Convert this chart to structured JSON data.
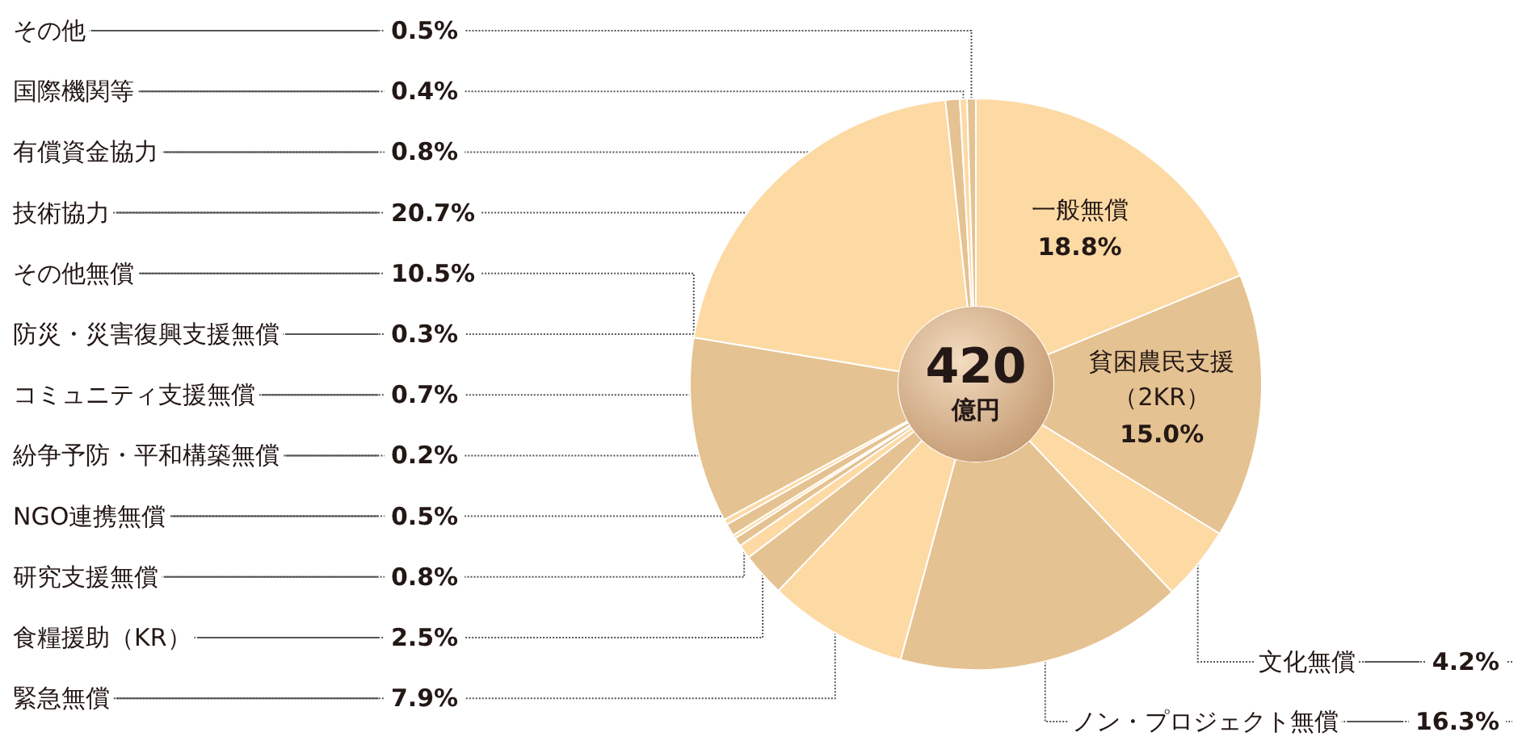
{
  "chart_data": {
    "type": "donut",
    "categories": [
      "一般無償",
      "貧困農民支援（2KR）",
      "文化無償",
      "ノン・プロジェクト無償",
      "緊急無償",
      "食糧援助（KR）",
      "研究支援無償",
      "NGO連携無償",
      "紛争予防・平和構築無償",
      "コミュニティ支援無償",
      "防災・災害復興支援無償",
      "その他無償",
      "技術協力",
      "有償資金協力",
      "国際機関等",
      "その他"
    ],
    "values": [
      18.8,
      15.0,
      4.2,
      16.3,
      7.9,
      2.5,
      0.8,
      0.5,
      0.2,
      0.7,
      0.3,
      10.5,
      20.7,
      0.8,
      0.4,
      0.5
    ],
    "value_labels": [
      "18.8%",
      "15.0%",
      "4.2%",
      "16.3%",
      "7.9%",
      "2.5%",
      "0.8%",
      "0.5%",
      "0.2%",
      "0.7%",
      "0.3%",
      "10.5%",
      "20.7%",
      "0.8%",
      "0.4%",
      "0.5%"
    ],
    "colors": [
      "#fdd9a4",
      "#e5c291",
      "#fdd9a4",
      "#e5c291",
      "#fdd9a4",
      "#e5c291",
      "#fdd9a4",
      "#e5c291",
      "#fdd9a4",
      "#e5c291",
      "#fdd9a4",
      "#e5c291",
      "#fdd9a4",
      "#e5c291",
      "#fdd9a4",
      "#e5c291"
    ],
    "annotations": [
      "420",
      "億円"
    ],
    "legend": false
  }
}
